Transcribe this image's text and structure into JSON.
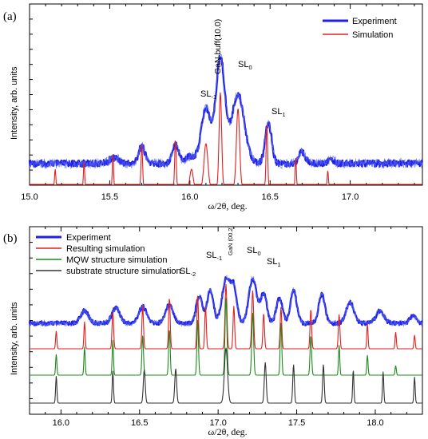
{
  "chart_data": [
    {
      "type": "line",
      "panel_label": "(a)",
      "xlabel": "ω/2θ, deg.",
      "ylabel": "Intensity, arb. units",
      "xlim": [
        15.0,
        17.45
      ],
      "y_scale": "log (unlabeled)",
      "xticks": [
        "15.0",
        "15.5",
        "16.0",
        "16.5",
        "17.0"
      ],
      "legend": {
        "placement": "top-right",
        "entries": [
          "Experiment",
          "Simulation"
        ]
      },
      "annotations": [
        {
          "text": "GaN buff(10.0)",
          "x": 16.18
        },
        {
          "html": "SL<sub>-1</sub>",
          "text": "SL-1",
          "x": 16.1
        },
        {
          "html": "SL<sub>0</sub>",
          "text": "SL0",
          "x": 16.3
        },
        {
          "html": "SL<sub>1</sub>",
          "text": "SL1",
          "x": 16.5
        }
      ],
      "series": [
        {
          "name": "Experiment",
          "color": "#1f1fe6",
          "baseline": 0.04,
          "peaks": [
            [
              15.53,
              0.04,
              0.03
            ],
            [
              15.7,
              0.12,
              0.02
            ],
            [
              15.91,
              0.14,
              0.02
            ],
            [
              16.0,
              0.05,
              0.03
            ],
            [
              16.1,
              0.38,
              0.03
            ],
            [
              16.19,
              0.73,
              0.028
            ],
            [
              16.3,
              0.48,
              0.04
            ],
            [
              16.49,
              0.28,
              0.02
            ],
            [
              16.7,
              0.08,
              0.02
            ],
            [
              16.88,
              0.03,
              0.02
            ]
          ]
        },
        {
          "name": "Simulation",
          "color": "#e02020",
          "baseline": 0.01,
          "peaks": [
            [
              15.16,
              0.12,
              0.004
            ],
            [
              15.34,
              0.16,
              0.004
            ],
            [
              15.52,
              0.21,
              0.004
            ],
            [
              15.7,
              0.27,
              0.005
            ],
            [
              15.91,
              0.3,
              0.005
            ],
            [
              16.01,
              0.12,
              0.01
            ],
            [
              16.1,
              0.28,
              0.012
            ],
            [
              16.19,
              0.6,
              0.008
            ],
            [
              16.3,
              0.5,
              0.01
            ],
            [
              16.48,
              0.4,
              0.005
            ],
            [
              16.66,
              0.19,
              0.004
            ],
            [
              16.86,
              0.11,
              0.004
            ]
          ]
        }
      ]
    },
    {
      "type": "line",
      "panel_label": "(b)",
      "xlabel": "ω/2θ, deg.",
      "ylabel": "Intensity, arb. units",
      "xlim": [
        15.8,
        18.3
      ],
      "y_scale": "log (unlabeled), curves vertically offset",
      "xticks": [
        "16.0",
        "16.5",
        "17.0",
        "17.5",
        "18.0"
      ],
      "legend": {
        "placement": "top-left",
        "entries": [
          "Experiment",
          "Resulting simulation",
          "MQW structure simulation",
          "substrate structure simulation"
        ]
      },
      "annotations": [
        {
          "text": "GaN (00.2)",
          "x": 17.05
        },
        {
          "html": "SL<sub>-2</sub>",
          "text": "SL-2",
          "x": 16.87
        },
        {
          "html": "SL<sub>-1</sub>",
          "text": "SL-1",
          "x": 17.03
        },
        {
          "html": "SL<sub>0</sub>",
          "text": "SL0",
          "x": 17.22
        },
        {
          "html": "SL<sub>1</sub>",
          "text": "SL1",
          "x": 17.38
        }
      ],
      "series": [
        {
          "name": "Experiment",
          "color": "#1f1fe6",
          "baseline": 0.0,
          "peaks": [
            [
              16.15,
              0.12,
              0.025
            ],
            [
              16.35,
              0.15,
              0.025
            ],
            [
              16.52,
              0.16,
              0.025
            ],
            [
              16.69,
              0.18,
              0.025
            ],
            [
              16.88,
              0.26,
              0.02
            ],
            [
              16.95,
              0.32,
              0.02
            ],
            [
              17.05,
              0.42,
              0.025
            ],
            [
              17.1,
              0.33,
              0.02
            ],
            [
              17.22,
              0.43,
              0.025
            ],
            [
              17.29,
              0.28,
              0.02
            ],
            [
              17.39,
              0.24,
              0.02
            ],
            [
              17.48,
              0.32,
              0.02
            ],
            [
              17.66,
              0.28,
              0.02
            ],
            [
              17.84,
              0.2,
              0.025
            ],
            [
              18.03,
              0.12,
              0.025
            ],
            [
              18.24,
              0.07,
              0.02
            ]
          ]
        },
        {
          "name": "Resulting simulation",
          "color": "#e02020",
          "baseline": 0.0,
          "peaks": [
            [
              15.97,
              0.17,
              0.004
            ],
            [
              16.15,
              0.26,
              0.004
            ],
            [
              16.33,
              0.35,
              0.005
            ],
            [
              16.52,
              0.41,
              0.005
            ],
            [
              16.69,
              0.49,
              0.005
            ],
            [
              16.87,
              0.51,
              0.005
            ],
            [
              16.92,
              0.4,
              0.005
            ],
            [
              17.05,
              0.62,
              0.006
            ],
            [
              17.1,
              0.41,
              0.005
            ],
            [
              17.22,
              0.56,
              0.006
            ],
            [
              17.29,
              0.34,
              0.005
            ],
            [
              17.4,
              0.4,
              0.005
            ],
            [
              17.59,
              0.38,
              0.005
            ],
            [
              17.77,
              0.33,
              0.005
            ],
            [
              17.95,
              0.24,
              0.004
            ],
            [
              18.13,
              0.16,
              0.004
            ],
            [
              18.25,
              0.13,
              0.004
            ]
          ]
        },
        {
          "name": "MQW structure simulation",
          "color": "#1d8a1d",
          "baseline": 0.0,
          "peaks": [
            [
              15.97,
              0.2,
              0.004
            ],
            [
              16.15,
              0.27,
              0.004
            ],
            [
              16.33,
              0.34,
              0.004
            ],
            [
              16.52,
              0.38,
              0.005
            ],
            [
              16.69,
              0.44,
              0.005
            ],
            [
              16.87,
              0.53,
              0.005
            ],
            [
              17.05,
              0.74,
              0.006
            ],
            [
              17.22,
              0.6,
              0.006
            ],
            [
              17.4,
              0.5,
              0.005
            ],
            [
              17.59,
              0.38,
              0.005
            ],
            [
              17.77,
              0.29,
              0.004
            ],
            [
              17.95,
              0.19,
              0.004
            ],
            [
              18.13,
              0.09,
              0.004
            ]
          ]
        },
        {
          "name": "substrate structure simulation",
          "color": "#333333",
          "baseline": 0.0,
          "peaks": [
            [
              15.97,
              0.26,
              0.004
            ],
            [
              16.33,
              0.31,
              0.004
            ],
            [
              16.53,
              0.32,
              0.006
            ],
            [
              16.73,
              0.33,
              0.006
            ],
            [
              17.05,
              0.53,
              0.01
            ],
            [
              17.3,
              0.39,
              0.006
            ],
            [
              17.48,
              0.37,
              0.005
            ],
            [
              17.67,
              0.37,
              0.005
            ],
            [
              17.86,
              0.32,
              0.004
            ],
            [
              18.05,
              0.3,
              0.004
            ],
            [
              18.25,
              0.25,
              0.004
            ]
          ]
        }
      ]
    }
  ]
}
